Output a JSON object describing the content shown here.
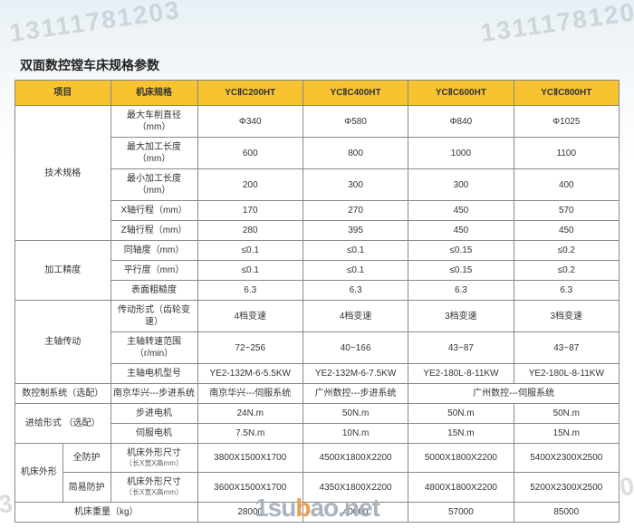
{
  "watermark": "13111781203",
  "logo": {
    "prefix": "1su",
    "mid": "b",
    "suffix": "ao.net"
  },
  "title": "双面数控镗车床规格参数",
  "colors": {
    "header_bg": "#f7c331",
    "border": "#888888",
    "text": "#333333",
    "bg_gradient_top": "#e8f0f5",
    "bg_gradient_bottom": "#ffffff"
  },
  "headers": {
    "item": "项目",
    "spec": "机床规格",
    "c1": "YCⅡC200HT",
    "c2": "YCⅡC400HT",
    "c3": "YCⅡC600HT",
    "c4": "YCⅡC800HT"
  },
  "groups": {
    "tech": "技术规格",
    "prec": "加工精度",
    "spindle": "主轴传动",
    "cnc": "数控制系统（选配）",
    "feed": "进给形式\n（选配）",
    "shape": "机床外形",
    "weight": "机床重量（kg）"
  },
  "rows": [
    {
      "label": "最大车削直径（mm）",
      "v": [
        "Φ340",
        "Φ580",
        "Φ840",
        "Φ1025"
      ]
    },
    {
      "label": "最大加工长度（mm）",
      "v": [
        "600",
        "800",
        "1000",
        "1100"
      ]
    },
    {
      "label": "最小加工长度（mm）",
      "v": [
        "200",
        "300",
        "300",
        "400"
      ]
    },
    {
      "label": "X轴行程（mm）",
      "v": [
        "170",
        "270",
        "450",
        "570"
      ]
    },
    {
      "label": "Z轴行程（mm）",
      "v": [
        "280",
        "395",
        "450",
        "450"
      ]
    },
    {
      "label": "同轴度（mm）",
      "v": [
        "≤0.1",
        "≤0.1",
        "≤0.15",
        "≤0.2"
      ]
    },
    {
      "label": "平行度（mm）",
      "v": [
        "≤0.1",
        "≤0.1",
        "≤0.15",
        "≤0.2"
      ]
    },
    {
      "label": "表面粗糙度",
      "v": [
        "6.3",
        "6.3",
        "6.3",
        "6.3"
      ]
    },
    {
      "label": "传动形式（齿轮变速）",
      "v": [
        "4档变速",
        "4档变速",
        "3档变速",
        "3档变速"
      ]
    },
    {
      "label": "主轴转速范围（r/min）",
      "v": [
        "72~256",
        "40~166",
        "43~87",
        "43~87"
      ]
    },
    {
      "label": "主轴电机型号",
      "v": [
        "YE2-132M-6-5.5KW",
        "YE2-132M-6-7.5KW",
        "YE2-180L-8-11KW",
        "YE2-180L-8-11KW"
      ]
    },
    {
      "label_cnc": "南京华兴---步进系统",
      "v": [
        "南京华兴---伺服系统",
        "广州数控---步进系统",
        "广州数控---伺服系统"
      ]
    },
    {
      "label": "步进电机",
      "v": [
        "24N.m",
        "50N.m",
        "50N.m",
        "50N.m"
      ]
    },
    {
      "label": "伺服电机",
      "v": [
        "7.5N.m",
        "10N.m",
        "15N.m",
        "15N.m"
      ]
    },
    {
      "sublabel": "全防护",
      "label": "机床外形尺寸",
      "sub": "（长X宽X高mm）",
      "v": [
        "3800X1500X1700",
        "4500X1800X2200",
        "5000X1800X2200",
        "5400X2300X2500"
      ]
    },
    {
      "sublabel": "简易防护",
      "label": "机床外形尺寸",
      "sub": "（长X宽X高mm）",
      "v": [
        "3600X1500X1700",
        "4350X1800X2200",
        "4800X1800X2200",
        "5200X2300X2500"
      ]
    },
    {
      "v": [
        "28000",
        "40000",
        "57000",
        "85000"
      ]
    }
  ]
}
